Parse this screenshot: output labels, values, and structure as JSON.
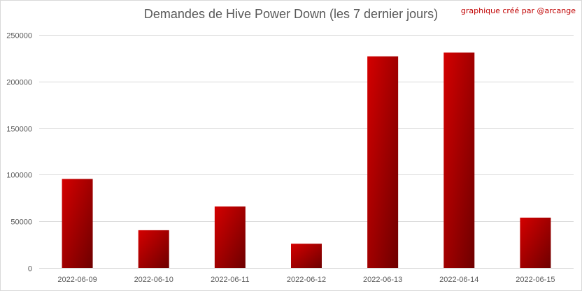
{
  "header": {
    "title": "Demandes de Hive Power Down (les 7 dernier jours)",
    "credit": "graphique créé par @arcange"
  },
  "colors": {
    "bar_light": "#d40000",
    "bar_dark": "#6e0000",
    "grid": "#d9d9d9",
    "text": "#595959",
    "credit": "#c00000"
  },
  "chart_data": {
    "type": "bar",
    "title": "Demandes de Hive Power Down (les 7 dernier jours)",
    "categories": [
      "2022-06-09",
      "2022-06-10",
      "2022-06-11",
      "2022-06-12",
      "2022-06-13",
      "2022-06-14",
      "2022-06-15"
    ],
    "values": [
      95500,
      40500,
      66000,
      26000,
      227000,
      231000,
      54000
    ],
    "ylim": [
      0,
      250000
    ],
    "yticks": [
      "0",
      "50000",
      "100000",
      "150000",
      "200000",
      "250000"
    ],
    "grid": true,
    "legend": "none"
  }
}
